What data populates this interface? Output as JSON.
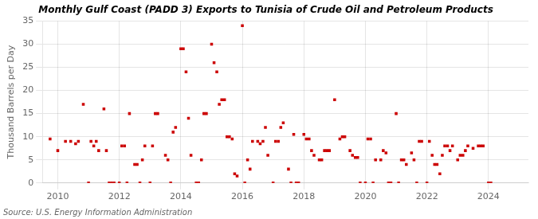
{
  "chart_data": {
    "type": "scatter",
    "title": "Monthly Gulf Coast (PADD 3) Exports to Tunisia of Crude Oil and Petroleum Products",
    "ylabel": "Thousand Barrels per Day",
    "annotations": [
      "Source: U.S. Energy Information Administration"
    ],
    "color": "#cc0000",
    "marker": "square",
    "grid": true,
    "xlim": [
      2009.5,
      2025.3
    ],
    "xticks": [
      2010,
      2012,
      2014,
      2016,
      2018,
      2020,
      2022,
      2024
    ],
    "ylim": [
      0,
      35
    ],
    "yticks": [
      0,
      5,
      10,
      15,
      20,
      25,
      30,
      35
    ],
    "x": [
      2009.75,
      2010.0,
      2010.25,
      2010.42,
      2010.58,
      2010.67,
      2010.83,
      2011.0,
      2011.08,
      2011.17,
      2011.25,
      2011.33,
      2011.5,
      2011.58,
      2011.67,
      2011.75,
      2011.83,
      2012.0,
      2012.08,
      2012.17,
      2012.25,
      2012.33,
      2012.5,
      2012.58,
      2012.67,
      2012.75,
      2012.83,
      2013.0,
      2013.08,
      2013.17,
      2013.25,
      2013.5,
      2013.58,
      2013.67,
      2013.75,
      2013.83,
      2014.0,
      2014.08,
      2014.17,
      2014.25,
      2014.33,
      2014.5,
      2014.58,
      2014.67,
      2014.75,
      2014.83,
      2015.0,
      2015.08,
      2015.17,
      2015.25,
      2015.33,
      2015.42,
      2015.5,
      2015.58,
      2015.67,
      2015.75,
      2015.83,
      2016.0,
      2016.08,
      2016.17,
      2016.25,
      2016.33,
      2016.5,
      2016.58,
      2016.67,
      2016.75,
      2016.83,
      2017.0,
      2017.08,
      2017.17,
      2017.25,
      2017.33,
      2017.5,
      2017.58,
      2017.67,
      2017.75,
      2017.83,
      2018.0,
      2018.08,
      2018.17,
      2018.25,
      2018.33,
      2018.5,
      2018.58,
      2018.67,
      2018.75,
      2018.83,
      2019.0,
      2019.17,
      2019.25,
      2019.33,
      2019.5,
      2019.58,
      2019.67,
      2019.75,
      2019.83,
      2020.0,
      2020.08,
      2020.17,
      2020.25,
      2020.33,
      2020.5,
      2020.58,
      2020.67,
      2020.75,
      2020.83,
      2021.0,
      2021.08,
      2021.17,
      2021.25,
      2021.33,
      2021.5,
      2021.58,
      2021.67,
      2021.75,
      2021.83,
      2022.0,
      2022.08,
      2022.17,
      2022.25,
      2022.33,
      2022.42,
      2022.5,
      2022.58,
      2022.67,
      2022.75,
      2022.83,
      2023.0,
      2023.08,
      2023.17,
      2023.25,
      2023.33,
      2023.5,
      2023.67,
      2023.75,
      2023.83,
      2024.0,
      2024.08
    ],
    "values": [
      9.5,
      7.0,
      9.0,
      9.0,
      8.5,
      9.0,
      17.0,
      0.0,
      9.0,
      8.0,
      9.0,
      7.0,
      16.0,
      7.0,
      0.0,
      0.0,
      0.0,
      0.0,
      8.0,
      8.0,
      0.0,
      15.0,
      4.0,
      4.0,
      0.0,
      5.0,
      8.0,
      0.0,
      8.0,
      15.0,
      15.0,
      6.0,
      5.0,
      0.0,
      11.0,
      12.0,
      29.0,
      29.0,
      24.0,
      14.0,
      6.0,
      0.0,
      0.0,
      5.0,
      15.0,
      15.0,
      30.0,
      26.0,
      24.0,
      17.0,
      18.0,
      18.0,
      10.0,
      10.0,
      9.5,
      2.0,
      1.5,
      34.0,
      0.0,
      5.0,
      3.0,
      9.0,
      9.0,
      8.5,
      9.0,
      12.0,
      6.0,
      0.0,
      9.0,
      9.0,
      12.0,
      13.0,
      3.0,
      0.0,
      10.5,
      0.0,
      0.0,
      10.5,
      9.5,
      9.5,
      7.0,
      6.0,
      5.0,
      5.0,
      7.0,
      7.0,
      7.0,
      18.0,
      9.5,
      10.0,
      10.0,
      7.0,
      6.0,
      5.5,
      5.5,
      0.0,
      0.0,
      9.5,
      9.5,
      0.0,
      5.0,
      5.0,
      7.0,
      6.5,
      0.0,
      0.0,
      15.0,
      0.0,
      5.0,
      5.0,
      4.0,
      6.5,
      5.0,
      0.0,
      9.0,
      9.0,
      0.0,
      9.0,
      6.0,
      4.0,
      4.0,
      2.0,
      6.0,
      8.0,
      8.0,
      7.0,
      8.0,
      5.0,
      6.0,
      6.0,
      7.0,
      8.0,
      7.5,
      8.0,
      8.0,
      8.0,
      0.0,
      0.0
    ]
  }
}
